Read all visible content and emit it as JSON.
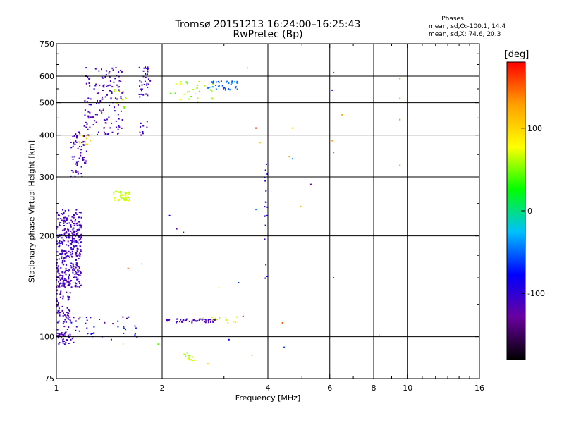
{
  "title_line1": "Tromsø 20151213 16:24:00–16:25:43",
  "title_line2": "RwPretec (Bp)",
  "legend": {
    "title": "Phases",
    "line1": "mean, sd,O:-100.1, 14.4",
    "line2": "mean, sd,X:  74.6, 20.3"
  },
  "colorbar": {
    "title": "[deg]",
    "ticks": [
      100,
      0,
      -100
    ],
    "tick_labels": [
      "100",
      "0",
      "-100"
    ],
    "range": [
      -180,
      180
    ],
    "colors": [
      "#000000",
      "#6a00a0",
      "#0000ff",
      "#00c0ff",
      "#00ff00",
      "#ffff00",
      "#ffa000",
      "#ff0000"
    ]
  },
  "chart_data": {
    "type": "scatter",
    "title": "Tromsø 20151213 16:24:00–16:25:43 RwPretec (Bp)",
    "xlabel": "Frequency [MHz]",
    "ylabel": "Stationary phase Virtual Height [km]",
    "x_scale": "log",
    "y_scale": "log",
    "xlim": [
      1,
      16
    ],
    "ylim": [
      75,
      750
    ],
    "x_ticks": [
      1,
      2,
      4,
      6,
      8,
      10,
      16
    ],
    "x_tick_labels": [
      "1",
      "2",
      "4",
      "6",
      "8",
      "10",
      "16"
    ],
    "y_ticks": [
      75,
      100,
      200,
      300,
      400,
      500,
      600,
      750
    ],
    "y_tick_labels": [
      "75",
      "100",
      "200",
      "300",
      "400",
      "500",
      "600",
      "750"
    ],
    "grid_x": [
      2,
      4,
      6,
      8,
      10
    ],
    "grid_y": [
      100,
      200,
      300,
      400,
      500,
      600
    ],
    "grid": true,
    "color_by": "phase [deg]",
    "clusters": [
      {
        "fmin": 1.0,
        "fmax": 1.18,
        "hmin": 140,
        "hmax": 240,
        "phase": -110,
        "spread": 14,
        "n": 340
      },
      {
        "fmin": 1.0,
        "fmax": 1.1,
        "hmin": 100,
        "hmax": 150,
        "phase": -110,
        "spread": 14,
        "n": 90
      },
      {
        "fmin": 1.0,
        "fmax": 1.12,
        "hmin": 95,
        "hmax": 102,
        "phase": -110,
        "spread": 14,
        "n": 30
      },
      {
        "fmin": 1.1,
        "fmax": 1.22,
        "hmin": 300,
        "hmax": 410,
        "phase": -110,
        "spread": 14,
        "n": 60
      },
      {
        "fmin": 1.15,
        "fmax": 1.25,
        "hmin": 375,
        "hmax": 400,
        "phase": 100,
        "spread": 10,
        "n": 12
      },
      {
        "fmin": 1.2,
        "fmax": 1.55,
        "hmin": 400,
        "hmax": 640,
        "phase": -110,
        "spread": 14,
        "n": 140
      },
      {
        "fmin": 1.45,
        "fmax": 1.6,
        "hmin": 480,
        "hmax": 560,
        "phase": 60,
        "spread": 15,
        "n": 10
      },
      {
        "fmin": 1.72,
        "fmax": 1.85,
        "hmin": 520,
        "hmax": 640,
        "phase": -110,
        "spread": 12,
        "n": 35
      },
      {
        "fmin": 1.72,
        "fmax": 1.85,
        "hmin": 400,
        "hmax": 440,
        "phase": -110,
        "spread": 12,
        "n": 10
      },
      {
        "fmin": 1.45,
        "fmax": 1.62,
        "hmin": 255,
        "hmax": 272,
        "phase": 65,
        "spread": 15,
        "n": 45
      },
      {
        "fmin": 1.1,
        "fmax": 1.7,
        "hmin": 98,
        "hmax": 115,
        "phase": -100,
        "spread": 40,
        "n": 40
      },
      {
        "fmin": 2.0,
        "fmax": 2.85,
        "hmin": 110,
        "hmax": 113,
        "phase": -110,
        "spread": 14,
        "n": 55
      },
      {
        "fmin": 2.6,
        "fmax": 3.3,
        "hmin": 110,
        "hmax": 115,
        "phase": 70,
        "spread": 20,
        "n": 15
      },
      {
        "fmin": 2.7,
        "fmax": 3.3,
        "hmin": 545,
        "hmax": 580,
        "phase": -50,
        "spread": 14,
        "n": 35
      },
      {
        "fmin": 2.1,
        "fmax": 2.8,
        "hmin": 500,
        "hmax": 580,
        "phase": 55,
        "spread": 20,
        "n": 30
      },
      {
        "fmin": 2.3,
        "fmax": 2.5,
        "hmin": 85,
        "hmax": 90,
        "phase": 65,
        "spread": 12,
        "n": 12
      },
      {
        "fmin": 3.9,
        "fmax": 4.0,
        "hmin": 140,
        "hmax": 330,
        "phase": -90,
        "spread": 20,
        "n": 18
      }
    ],
    "points": [
      {
        "x": 6.15,
        "y": 615,
        "phase": 175
      },
      {
        "x": 6.1,
        "y": 545,
        "phase": -90
      },
      {
        "x": 6.1,
        "y": 385,
        "phase": 130
      },
      {
        "x": 6.15,
        "y": 355,
        "phase": -30
      },
      {
        "x": 6.15,
        "y": 150,
        "phase": 170
      },
      {
        "x": 6.5,
        "y": 460,
        "phase": 120
      },
      {
        "x": 8.3,
        "y": 101,
        "phase": 100
      },
      {
        "x": 9.5,
        "y": 590,
        "phase": 130
      },
      {
        "x": 9.5,
        "y": 515,
        "phase": 40
      },
      {
        "x": 9.5,
        "y": 445,
        "phase": 140
      },
      {
        "x": 9.5,
        "y": 325,
        "phase": 130
      },
      {
        "x": 4.4,
        "y": 110,
        "phase": 150
      },
      {
        "x": 4.45,
        "y": 93,
        "phase": -60
      },
      {
        "x": 4.6,
        "y": 345,
        "phase": 130
      },
      {
        "x": 4.7,
        "y": 340,
        "phase": -40
      },
      {
        "x": 4.7,
        "y": 420,
        "phase": 110
      },
      {
        "x": 4.95,
        "y": 245,
        "phase": 120
      },
      {
        "x": 5.3,
        "y": 285,
        "phase": -120
      },
      {
        "x": 3.7,
        "y": 420,
        "phase": 170
      },
      {
        "x": 3.7,
        "y": 240,
        "phase": -40
      },
      {
        "x": 3.5,
        "y": 635,
        "phase": 110
      },
      {
        "x": 3.4,
        "y": 115,
        "phase": 175
      },
      {
        "x": 3.3,
        "y": 145,
        "phase": -60
      },
      {
        "x": 2.9,
        "y": 140,
        "phase": 80
      },
      {
        "x": 2.1,
        "y": 230,
        "phase": -80
      },
      {
        "x": 2.2,
        "y": 210,
        "phase": -120
      },
      {
        "x": 2.3,
        "y": 205,
        "phase": -110
      },
      {
        "x": 1.75,
        "y": 165,
        "phase": 60
      },
      {
        "x": 1.6,
        "y": 160,
        "phase": 150
      },
      {
        "x": 1.55,
        "y": 95,
        "phase": 80
      },
      {
        "x": 1.95,
        "y": 95,
        "phase": 40
      },
      {
        "x": 2.7,
        "y": 83,
        "phase": 100
      },
      {
        "x": 3.6,
        "y": 88,
        "phase": 60
      },
      {
        "x": 3.1,
        "y": 98,
        "phase": -80
      },
      {
        "x": 3.8,
        "y": 380,
        "phase": 100
      }
    ]
  }
}
